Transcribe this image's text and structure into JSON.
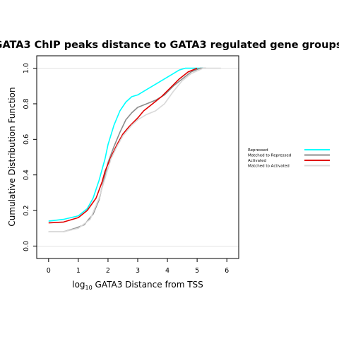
{
  "chart_data": {
    "type": "line",
    "title": "GATA3 ChIP peaks distance to GATA3 regulated gene groups",
    "xlabel_prefix": "log",
    "xlabel_sub": "10",
    "xlabel_rest": " GATA3 Distance from TSS",
    "ylabel": "Cumulative Distribution Function",
    "xlim": [
      -0.4,
      6.4
    ],
    "ylim": [
      -0.07,
      1.07
    ],
    "xticks": [
      "0",
      "1",
      "2",
      "3",
      "4",
      "5",
      "6"
    ],
    "yticks": [
      "0.0",
      "0.2",
      "0.4",
      "0.6",
      "0.8",
      "1.0"
    ],
    "hlines": [
      0,
      1
    ],
    "legend_position": "right",
    "series": [
      {
        "name": "Repressed",
        "color": "#00FFFF",
        "points": [
          [
            0,
            0.14
          ],
          [
            0.5,
            0.15
          ],
          [
            1.0,
            0.17
          ],
          [
            1.3,
            0.21
          ],
          [
            1.5,
            0.27
          ],
          [
            1.7,
            0.37
          ],
          [
            1.9,
            0.49
          ],
          [
            2.0,
            0.57
          ],
          [
            2.2,
            0.68
          ],
          [
            2.4,
            0.76
          ],
          [
            2.6,
            0.81
          ],
          [
            2.8,
            0.84
          ],
          [
            3.0,
            0.85
          ],
          [
            3.3,
            0.88
          ],
          [
            3.6,
            0.91
          ],
          [
            4.0,
            0.95
          ],
          [
            4.2,
            0.97
          ],
          [
            4.4,
            0.99
          ],
          [
            4.6,
            1.0
          ],
          [
            5.2,
            1.0
          ]
        ]
      },
      {
        "name": "Matched to Repressed",
        "color": "#8C8C8C",
        "points": [
          [
            0,
            0.08
          ],
          [
            0.5,
            0.08
          ],
          [
            0.9,
            0.1
          ],
          [
            1.2,
            0.12
          ],
          [
            1.5,
            0.18
          ],
          [
            1.7,
            0.26
          ],
          [
            1.9,
            0.4
          ],
          [
            2.0,
            0.47
          ],
          [
            2.2,
            0.56
          ],
          [
            2.4,
            0.64
          ],
          [
            2.6,
            0.71
          ],
          [
            2.8,
            0.75
          ],
          [
            3.0,
            0.78
          ],
          [
            3.3,
            0.8
          ],
          [
            3.6,
            0.82
          ],
          [
            3.9,
            0.85
          ],
          [
            4.2,
            0.9
          ],
          [
            4.5,
            0.94
          ],
          [
            4.8,
            0.98
          ],
          [
            5.1,
            1.0
          ],
          [
            5.3,
            1.0
          ]
        ]
      },
      {
        "name": "Activated",
        "color": "#E00000",
        "points": [
          [
            0,
            0.13
          ],
          [
            0.5,
            0.135
          ],
          [
            0.8,
            0.15
          ],
          [
            1.0,
            0.16
          ],
          [
            1.3,
            0.2
          ],
          [
            1.6,
            0.27
          ],
          [
            1.8,
            0.36
          ],
          [
            1.9,
            0.42
          ],
          [
            2.1,
            0.5
          ],
          [
            2.3,
            0.57
          ],
          [
            2.5,
            0.63
          ],
          [
            2.7,
            0.67
          ],
          [
            3.0,
            0.72
          ],
          [
            3.2,
            0.76
          ],
          [
            3.5,
            0.8
          ],
          [
            3.8,
            0.84
          ],
          [
            4.1,
            0.89
          ],
          [
            4.4,
            0.94
          ],
          [
            4.7,
            0.98
          ],
          [
            5.0,
            1.0
          ]
        ]
      },
      {
        "name": "Matched to Activated",
        "color": "#D9D9D9",
        "points": [
          [
            0,
            0.08
          ],
          [
            0.5,
            0.08
          ],
          [
            1.0,
            0.1
          ],
          [
            1.4,
            0.15
          ],
          [
            1.7,
            0.27
          ],
          [
            1.9,
            0.38
          ],
          [
            2.1,
            0.49
          ],
          [
            2.3,
            0.56
          ],
          [
            2.5,
            0.62
          ],
          [
            2.8,
            0.68
          ],
          [
            3.0,
            0.71
          ],
          [
            3.3,
            0.74
          ],
          [
            3.6,
            0.76
          ],
          [
            3.9,
            0.8
          ],
          [
            4.2,
            0.87
          ],
          [
            4.5,
            0.93
          ],
          [
            4.8,
            0.97
          ],
          [
            5.2,
            1.0
          ],
          [
            5.8,
            1.0
          ]
        ]
      }
    ]
  }
}
